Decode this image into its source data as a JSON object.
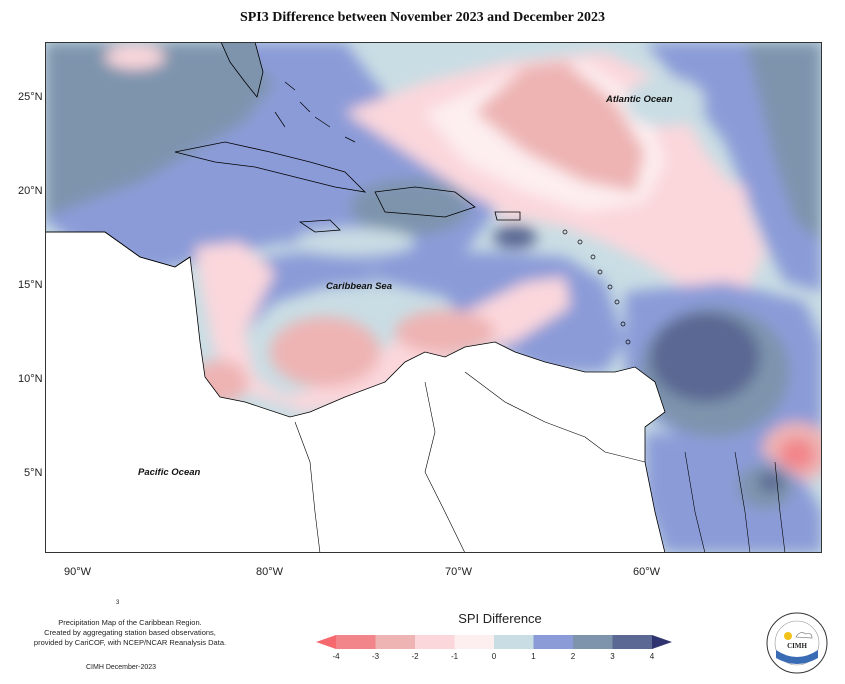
{
  "title": "SPI3 Difference between November 2023 and December 2023",
  "axes": {
    "lon_ticks": [
      "90°W",
      "80°W",
      "70°W",
      "60°W"
    ],
    "lat_ticks": [
      "25°N",
      "20°N",
      "15°N",
      "10°N",
      "5°N"
    ]
  },
  "labels": {
    "atlantic": "Atlantic Ocean",
    "caribbean": "Caribbean Sea",
    "pacific": "Pacific Ocean"
  },
  "legend": {
    "title": "SPI Difference",
    "ticks": [
      "-4",
      "-3",
      "-2",
      "-1",
      "0",
      "1",
      "2",
      "3",
      "4"
    ],
    "colors": [
      "#f2858a",
      "#eeb4b4",
      "#fbd7dc",
      "#fdeef0",
      "#c9dde4",
      "#8b9bd8",
      "#7e94ad",
      "#5a6893"
    ]
  },
  "credits": {
    "line1": "Precipitation Map of the Caribbean Region.",
    "line2": "Created by aggregating station based observations,",
    "line3": "provided by CariCOF, with NCEP/NCAR Reanalysis Data.",
    "date": "CIMH December-2023",
    "mark": "3"
  },
  "logo": {
    "text": "CIMH",
    "ring_text": "Caribbean Institute for Meteorology and Hydrology"
  }
}
